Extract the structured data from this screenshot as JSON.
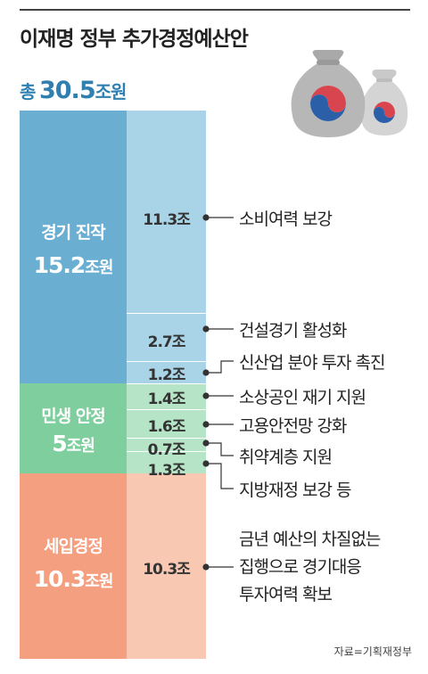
{
  "title": "이재명 정부 추가경정예산안",
  "total": {
    "label": "총",
    "value": "30.5",
    "unit": "조원"
  },
  "source": "자료=기획재정부",
  "colors": {
    "dark_blue": "#6aaed1",
    "light_blue": "#a9d3e6",
    "dark_green": "#7fcf9e",
    "light_green": "#b6e4c7",
    "dark_orange": "#f39f80",
    "light_orange": "#f8c8b3"
  },
  "icon": "money-bag-icon",
  "chart_data": {
    "type": "stacked-bar",
    "unit": "조원",
    "total": 30.5,
    "groups": [
      {
        "name": "경기 진작",
        "value": 15.2,
        "value_label": "15.2",
        "unit": "조원",
        "items": [
          {
            "label": "소비여력 보강",
            "value": 11.3,
            "value_label": "11.3조"
          },
          {
            "label": "건설경기 활성화",
            "value": 2.7,
            "value_label": "2.7조"
          },
          {
            "label": "신산업 분야 투자 촉진",
            "value": 1.2,
            "value_label": "1.2조"
          }
        ]
      },
      {
        "name": "민생 안정",
        "value": 5,
        "value_label": "5",
        "unit": "조원",
        "items": [
          {
            "label": "소상공인 재기 지원",
            "value": 1.4,
            "value_label": "1.4조"
          },
          {
            "label": "고용안전망 강화",
            "value": 1.6,
            "value_label": "1.6조"
          },
          {
            "label": "취약계층 지원",
            "value": 0.7,
            "value_label": "0.7조"
          },
          {
            "label": "지방재정 보강 등",
            "value": 1.3,
            "value_label": "1.3조"
          }
        ]
      },
      {
        "name": "세입경정",
        "value": 10.3,
        "value_label": "10.3",
        "unit": "조원",
        "items": [
          {
            "label_lines": [
              "금년 예산의 차질없는",
              "집행으로 경기대응",
              "투자여력 확보"
            ],
            "value": 10.3,
            "value_label": "10.3조"
          }
        ]
      }
    ]
  }
}
